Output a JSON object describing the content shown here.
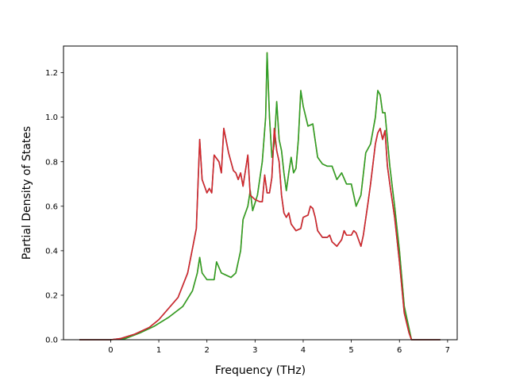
{
  "chart_data": {
    "type": "line",
    "xlabel": "Frequency (THz)",
    "ylabel": "Partial Density of States",
    "xlim": [
      -0.98,
      7.2
    ],
    "ylim": [
      0.0,
      1.32
    ],
    "x_ticks": [
      0,
      1,
      2,
      3,
      4,
      5,
      6,
      7
    ],
    "y_ticks": [
      0.0,
      0.2,
      0.4,
      0.6,
      0.8,
      1.0,
      1.2
    ],
    "x_tick_labels": [
      "0",
      "1",
      "2",
      "3",
      "4",
      "5",
      "6",
      "7"
    ],
    "y_tick_labels": [
      "0.0",
      "0.2",
      "0.4",
      "0.6",
      "0.8",
      "1.0",
      "1.2"
    ],
    "grid": false,
    "legend": "none",
    "series": [
      {
        "color": "#ff7f0e",
        "values": [
          [
            -0.65,
            0.0
          ],
          [
            0.0,
            0.0
          ],
          [
            0.3,
            0.005
          ],
          [
            0.6,
            0.03
          ],
          [
            0.9,
            0.06
          ],
          [
            1.2,
            0.1
          ],
          [
            1.5,
            0.15
          ],
          [
            1.7,
            0.22
          ],
          [
            1.8,
            0.3
          ],
          [
            1.85,
            0.37
          ],
          [
            1.9,
            0.3
          ],
          [
            2.0,
            0.27
          ],
          [
            2.15,
            0.27
          ],
          [
            2.2,
            0.35
          ],
          [
            2.3,
            0.3
          ],
          [
            2.5,
            0.28
          ],
          [
            2.6,
            0.3
          ],
          [
            2.7,
            0.4
          ],
          [
            2.75,
            0.54
          ],
          [
            2.85,
            0.6
          ],
          [
            2.9,
            0.67
          ],
          [
            2.95,
            0.58
          ],
          [
            3.05,
            0.65
          ],
          [
            3.15,
            0.8
          ],
          [
            3.22,
            1.0
          ],
          [
            3.25,
            1.29
          ],
          [
            3.3,
            1.0
          ],
          [
            3.35,
            0.82
          ],
          [
            3.4,
            0.88
          ],
          [
            3.45,
            1.07
          ],
          [
            3.5,
            0.9
          ],
          [
            3.55,
            0.85
          ],
          [
            3.6,
            0.75
          ],
          [
            3.65,
            0.67
          ],
          [
            3.7,
            0.75
          ],
          [
            3.75,
            0.82
          ],
          [
            3.8,
            0.75
          ],
          [
            3.85,
            0.77
          ],
          [
            3.9,
            0.9
          ],
          [
            3.95,
            1.12
          ],
          [
            4.0,
            1.05
          ],
          [
            4.1,
            0.96
          ],
          [
            4.2,
            0.97
          ],
          [
            4.3,
            0.82
          ],
          [
            4.4,
            0.79
          ],
          [
            4.5,
            0.78
          ],
          [
            4.6,
            0.78
          ],
          [
            4.7,
            0.72
          ],
          [
            4.8,
            0.75
          ],
          [
            4.9,
            0.7
          ],
          [
            5.0,
            0.7
          ],
          [
            5.1,
            0.6
          ],
          [
            5.2,
            0.65
          ],
          [
            5.3,
            0.84
          ],
          [
            5.4,
            0.88
          ],
          [
            5.5,
            1.0
          ],
          [
            5.55,
            1.12
          ],
          [
            5.6,
            1.1
          ],
          [
            5.65,
            1.02
          ],
          [
            5.7,
            1.02
          ],
          [
            5.8,
            0.78
          ],
          [
            5.9,
            0.6
          ],
          [
            6.0,
            0.4
          ],
          [
            6.1,
            0.15
          ],
          [
            6.2,
            0.05
          ],
          [
            6.25,
            0.0
          ],
          [
            6.85,
            0.0
          ]
        ]
      },
      {
        "color": "#2ca02c",
        "values": [
          [
            -0.65,
            0.0
          ],
          [
            0.0,
            0.0
          ],
          [
            0.3,
            0.005
          ],
          [
            0.6,
            0.03
          ],
          [
            0.9,
            0.06
          ],
          [
            1.2,
            0.1
          ],
          [
            1.5,
            0.15
          ],
          [
            1.7,
            0.22
          ],
          [
            1.8,
            0.3
          ],
          [
            1.85,
            0.37
          ],
          [
            1.9,
            0.3
          ],
          [
            2.0,
            0.27
          ],
          [
            2.15,
            0.27
          ],
          [
            2.2,
            0.35
          ],
          [
            2.3,
            0.3
          ],
          [
            2.5,
            0.28
          ],
          [
            2.6,
            0.3
          ],
          [
            2.7,
            0.4
          ],
          [
            2.75,
            0.54
          ],
          [
            2.85,
            0.6
          ],
          [
            2.9,
            0.67
          ],
          [
            2.95,
            0.58
          ],
          [
            3.05,
            0.65
          ],
          [
            3.15,
            0.8
          ],
          [
            3.22,
            1.0
          ],
          [
            3.25,
            1.29
          ],
          [
            3.3,
            1.0
          ],
          [
            3.35,
            0.82
          ],
          [
            3.4,
            0.88
          ],
          [
            3.45,
            1.07
          ],
          [
            3.5,
            0.9
          ],
          [
            3.55,
            0.85
          ],
          [
            3.6,
            0.75
          ],
          [
            3.65,
            0.67
          ],
          [
            3.7,
            0.75
          ],
          [
            3.75,
            0.82
          ],
          [
            3.8,
            0.75
          ],
          [
            3.85,
            0.77
          ],
          [
            3.9,
            0.9
          ],
          [
            3.95,
            1.12
          ],
          [
            4.0,
            1.05
          ],
          [
            4.1,
            0.96
          ],
          [
            4.2,
            0.97
          ],
          [
            4.3,
            0.82
          ],
          [
            4.4,
            0.79
          ],
          [
            4.5,
            0.78
          ],
          [
            4.6,
            0.78
          ],
          [
            4.7,
            0.72
          ],
          [
            4.8,
            0.75
          ],
          [
            4.9,
            0.7
          ],
          [
            5.0,
            0.7
          ],
          [
            5.1,
            0.6
          ],
          [
            5.2,
            0.65
          ],
          [
            5.3,
            0.84
          ],
          [
            5.4,
            0.88
          ],
          [
            5.5,
            1.0
          ],
          [
            5.55,
            1.12
          ],
          [
            5.6,
            1.1
          ],
          [
            5.65,
            1.02
          ],
          [
            5.7,
            1.02
          ],
          [
            5.8,
            0.78
          ],
          [
            5.9,
            0.6
          ],
          [
            6.0,
            0.4
          ],
          [
            6.1,
            0.15
          ],
          [
            6.2,
            0.05
          ],
          [
            6.25,
            0.0
          ],
          [
            6.85,
            0.0
          ]
        ]
      },
      {
        "color": "#1f77b4",
        "values": [
          [
            -0.65,
            0.0
          ],
          [
            0.0,
            0.0
          ],
          [
            0.2,
            0.005
          ],
          [
            0.5,
            0.025
          ],
          [
            0.8,
            0.055
          ],
          [
            1.0,
            0.09
          ],
          [
            1.2,
            0.14
          ],
          [
            1.4,
            0.19
          ],
          [
            1.6,
            0.3
          ],
          [
            1.7,
            0.41
          ],
          [
            1.78,
            0.5
          ],
          [
            1.85,
            0.9
          ],
          [
            1.9,
            0.72
          ],
          [
            2.0,
            0.66
          ],
          [
            2.05,
            0.68
          ],
          [
            2.1,
            0.66
          ],
          [
            2.15,
            0.83
          ],
          [
            2.25,
            0.8
          ],
          [
            2.3,
            0.75
          ],
          [
            2.35,
            0.95
          ],
          [
            2.45,
            0.84
          ],
          [
            2.55,
            0.76
          ],
          [
            2.6,
            0.75
          ],
          [
            2.65,
            0.72
          ],
          [
            2.7,
            0.75
          ],
          [
            2.75,
            0.69
          ],
          [
            2.85,
            0.83
          ],
          [
            2.9,
            0.65
          ],
          [
            3.0,
            0.63
          ],
          [
            3.1,
            0.62
          ],
          [
            3.15,
            0.62
          ],
          [
            3.2,
            0.74
          ],
          [
            3.25,
            0.66
          ],
          [
            3.3,
            0.66
          ],
          [
            3.35,
            0.73
          ],
          [
            3.4,
            0.95
          ],
          [
            3.45,
            0.85
          ],
          [
            3.5,
            0.8
          ],
          [
            3.55,
            0.65
          ],
          [
            3.6,
            0.57
          ],
          [
            3.65,
            0.55
          ],
          [
            3.7,
            0.57
          ],
          [
            3.75,
            0.52
          ],
          [
            3.85,
            0.49
          ],
          [
            3.95,
            0.5
          ],
          [
            4.0,
            0.55
          ],
          [
            4.1,
            0.56
          ],
          [
            4.15,
            0.6
          ],
          [
            4.2,
            0.59
          ],
          [
            4.25,
            0.55
          ],
          [
            4.3,
            0.49
          ],
          [
            4.4,
            0.46
          ],
          [
            4.5,
            0.46
          ],
          [
            4.55,
            0.47
          ],
          [
            4.6,
            0.44
          ],
          [
            4.7,
            0.42
          ],
          [
            4.8,
            0.45
          ],
          [
            4.85,
            0.49
          ],
          [
            4.9,
            0.47
          ],
          [
            5.0,
            0.47
          ],
          [
            5.05,
            0.49
          ],
          [
            5.1,
            0.48
          ],
          [
            5.15,
            0.45
          ],
          [
            5.2,
            0.42
          ],
          [
            5.25,
            0.47
          ],
          [
            5.35,
            0.62
          ],
          [
            5.4,
            0.7
          ],
          [
            5.5,
            0.88
          ],
          [
            5.55,
            0.93
          ],
          [
            5.6,
            0.95
          ],
          [
            5.65,
            0.9
          ],
          [
            5.7,
            0.94
          ],
          [
            5.75,
            0.78
          ],
          [
            5.8,
            0.7
          ],
          [
            5.9,
            0.55
          ],
          [
            6.0,
            0.35
          ],
          [
            6.1,
            0.12
          ],
          [
            6.2,
            0.03
          ],
          [
            6.25,
            0.0
          ],
          [
            6.85,
            0.0
          ]
        ]
      },
      {
        "color": "#d62728",
        "values": [
          [
            -0.65,
            0.0
          ],
          [
            0.0,
            0.0
          ],
          [
            0.2,
            0.005
          ],
          [
            0.5,
            0.025
          ],
          [
            0.8,
            0.055
          ],
          [
            1.0,
            0.09
          ],
          [
            1.2,
            0.14
          ],
          [
            1.4,
            0.19
          ],
          [
            1.6,
            0.3
          ],
          [
            1.7,
            0.41
          ],
          [
            1.78,
            0.5
          ],
          [
            1.85,
            0.9
          ],
          [
            1.9,
            0.72
          ],
          [
            2.0,
            0.66
          ],
          [
            2.05,
            0.68
          ],
          [
            2.1,
            0.66
          ],
          [
            2.15,
            0.83
          ],
          [
            2.25,
            0.8
          ],
          [
            2.3,
            0.75
          ],
          [
            2.35,
            0.95
          ],
          [
            2.45,
            0.84
          ],
          [
            2.55,
            0.76
          ],
          [
            2.6,
            0.75
          ],
          [
            2.65,
            0.72
          ],
          [
            2.7,
            0.75
          ],
          [
            2.75,
            0.69
          ],
          [
            2.85,
            0.83
          ],
          [
            2.9,
            0.65
          ],
          [
            3.0,
            0.63
          ],
          [
            3.1,
            0.62
          ],
          [
            3.15,
            0.62
          ],
          [
            3.2,
            0.74
          ],
          [
            3.25,
            0.66
          ],
          [
            3.3,
            0.66
          ],
          [
            3.35,
            0.73
          ],
          [
            3.4,
            0.95
          ],
          [
            3.45,
            0.85
          ],
          [
            3.5,
            0.8
          ],
          [
            3.55,
            0.65
          ],
          [
            3.6,
            0.57
          ],
          [
            3.65,
            0.55
          ],
          [
            3.7,
            0.57
          ],
          [
            3.75,
            0.52
          ],
          [
            3.85,
            0.49
          ],
          [
            3.95,
            0.5
          ],
          [
            4.0,
            0.55
          ],
          [
            4.1,
            0.56
          ],
          [
            4.15,
            0.6
          ],
          [
            4.2,
            0.59
          ],
          [
            4.25,
            0.55
          ],
          [
            4.3,
            0.49
          ],
          [
            4.4,
            0.46
          ],
          [
            4.5,
            0.46
          ],
          [
            4.55,
            0.47
          ],
          [
            4.6,
            0.44
          ],
          [
            4.7,
            0.42
          ],
          [
            4.8,
            0.45
          ],
          [
            4.85,
            0.49
          ],
          [
            4.9,
            0.47
          ],
          [
            5.0,
            0.47
          ],
          [
            5.05,
            0.49
          ],
          [
            5.1,
            0.48
          ],
          [
            5.15,
            0.45
          ],
          [
            5.2,
            0.42
          ],
          [
            5.25,
            0.47
          ],
          [
            5.35,
            0.62
          ],
          [
            5.4,
            0.7
          ],
          [
            5.5,
            0.88
          ],
          [
            5.55,
            0.93
          ],
          [
            5.6,
            0.95
          ],
          [
            5.65,
            0.9
          ],
          [
            5.7,
            0.94
          ],
          [
            5.75,
            0.78
          ],
          [
            5.8,
            0.7
          ],
          [
            5.9,
            0.55
          ],
          [
            6.0,
            0.35
          ],
          [
            6.1,
            0.12
          ],
          [
            6.2,
            0.03
          ],
          [
            6.25,
            0.0
          ],
          [
            6.85,
            0.0
          ]
        ]
      }
    ]
  }
}
